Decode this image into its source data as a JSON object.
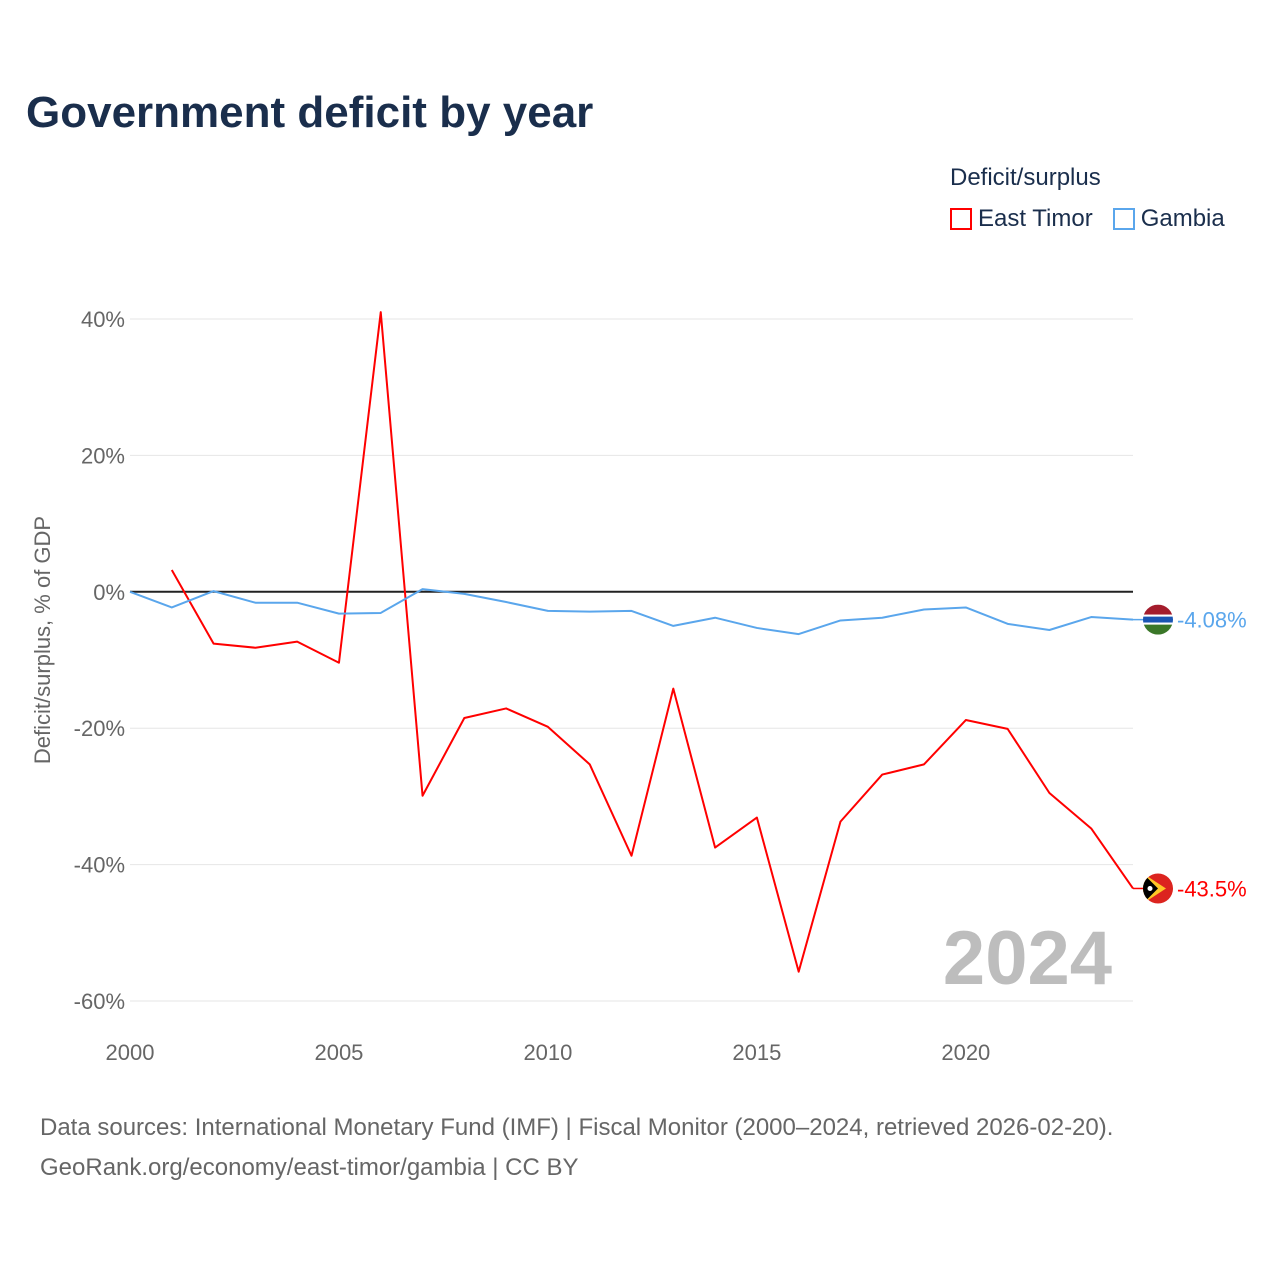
{
  "title": "Government deficit by year",
  "legend": {
    "title": "Deficit/surplus",
    "items": [
      {
        "label": "East Timor",
        "color": "#ff0000"
      },
      {
        "label": "Gambia",
        "color": "#5aa6ec"
      }
    ]
  },
  "source": {
    "line1": "Data sources: International Monetary Fund (IMF) | Fiscal Monitor (2000–2024, retrieved 2026-02-20).",
    "line2": "GeoRank.org/economy/east-timor/gambia | CC BY"
  },
  "chart_data": {
    "type": "line",
    "title": "Government deficit by year",
    "ylabel": "Deficit/surplus, % of GDP",
    "xlabel": "",
    "xlim": [
      2000,
      2024
    ],
    "ylim": [
      -60,
      40
    ],
    "x_ticks": [
      2000,
      2005,
      2010,
      2015,
      2020
    ],
    "x_tick_labels": [
      "2000",
      "2005",
      "2010",
      "2015",
      "2020"
    ],
    "y_ticks": [
      40,
      20,
      0,
      -20,
      -40,
      -60
    ],
    "y_tick_labels": [
      "40%",
      "20%",
      "0%",
      "-20%",
      "-40%",
      "-60%"
    ],
    "watermark_year": "2024",
    "series": [
      {
        "name": "East Timor",
        "color": "#ff0000",
        "end_label": "-43.5%",
        "x": [
          2001,
          2002,
          2003,
          2004,
          2005,
          2006,
          2007,
          2008,
          2009,
          2010,
          2011,
          2012,
          2013,
          2014,
          2015,
          2016,
          2017,
          2018,
          2019,
          2020,
          2021,
          2022,
          2023,
          2024
        ],
        "values": [
          3.2,
          -7.6,
          -8.2,
          -7.3,
          -10.4,
          41.0,
          -29.9,
          -18.5,
          -17.1,
          -19.8,
          -25.3,
          -38.7,
          -14.2,
          -37.5,
          -33.1,
          -55.7,
          -33.7,
          -26.8,
          -25.3,
          -18.8,
          -20.1,
          -29.5,
          -34.7,
          -43.5
        ]
      },
      {
        "name": "Gambia",
        "color": "#5aa6ec",
        "end_label": "-4.08%",
        "x": [
          2000,
          2001,
          2002,
          2003,
          2004,
          2005,
          2006,
          2007,
          2008,
          2009,
          2010,
          2011,
          2012,
          2013,
          2014,
          2015,
          2016,
          2017,
          2018,
          2019,
          2020,
          2021,
          2022,
          2023,
          2024
        ],
        "values": [
          0,
          -2.3,
          0.1,
          -1.6,
          -1.6,
          -3.2,
          -3.1,
          0.4,
          -0.3,
          -1.5,
          -2.8,
          -2.9,
          -2.8,
          -5.0,
          -3.8,
          -5.3,
          -6.2,
          -4.2,
          -3.8,
          -2.6,
          -2.3,
          -4.7,
          -5.6,
          -3.7,
          -4.08
        ]
      }
    ]
  }
}
